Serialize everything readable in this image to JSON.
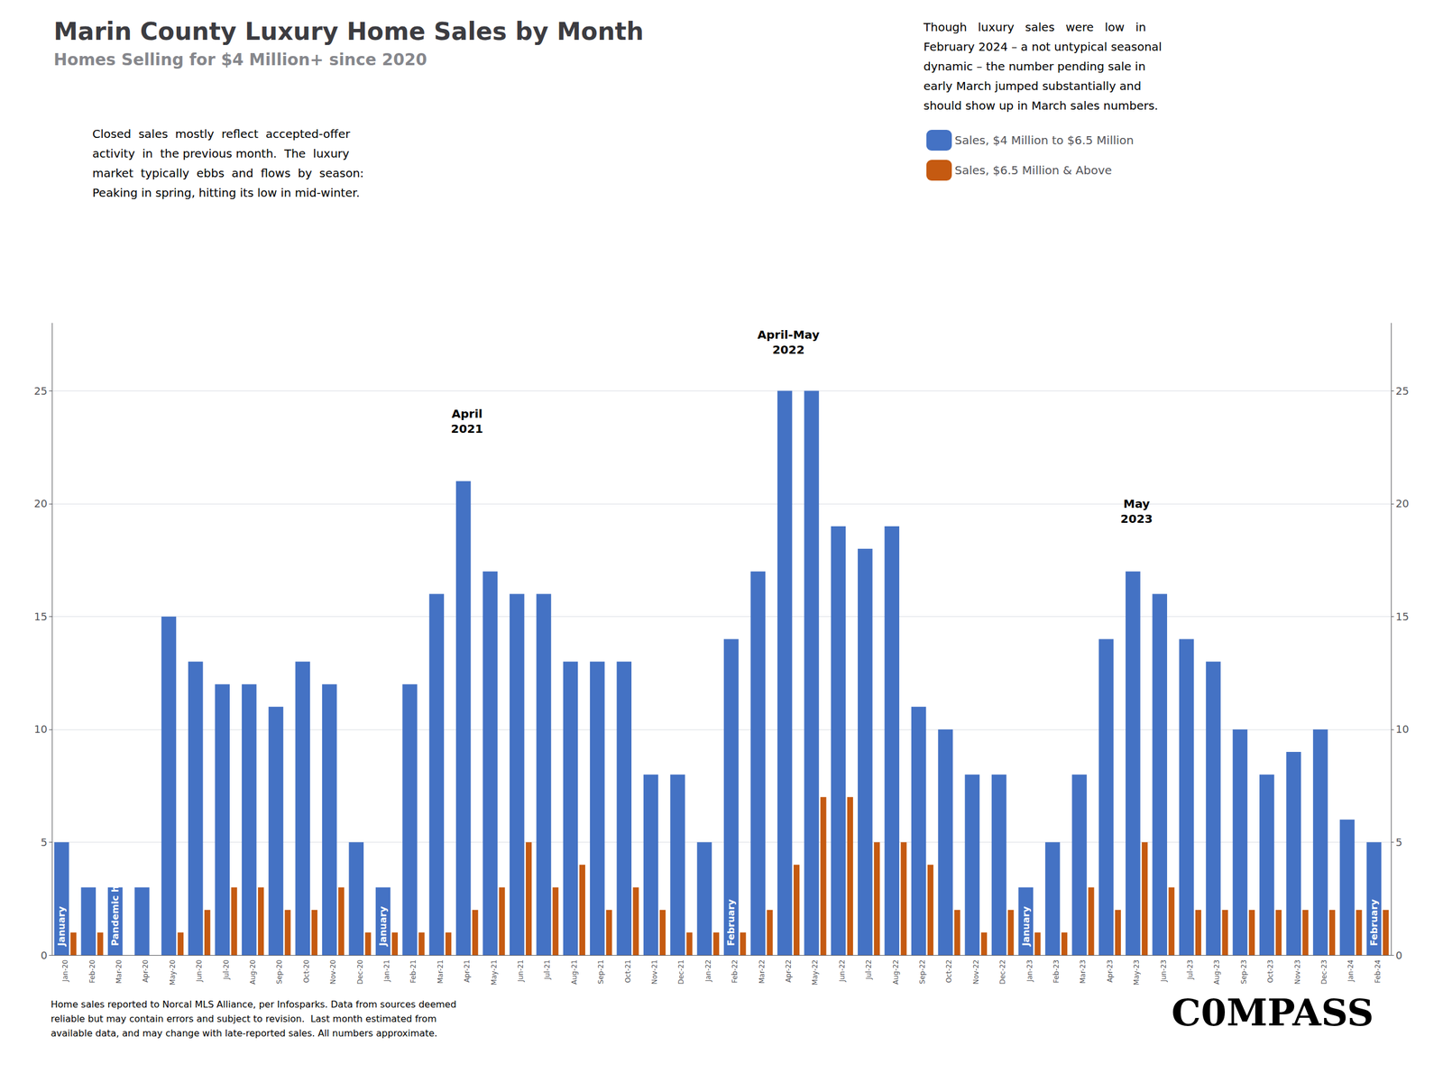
{
  "chart_data": {
    "type": "bar",
    "title": "Marin County Luxury Home Sales by Month",
    "subtitle": "Homes Selling for $4 Million+ since 2020",
    "description": [
      "Closed  sales  mostly  reflect  accepted-offer",
      "activity  in  the previous month.  The  luxury",
      "market  typically  ebbs  and  flows  by  season:",
      "Peaking in spring, hitting its low in mid-winter."
    ],
    "highlight_note": [
      "Though   luxury   sales   were   low   in",
      "February 2024 – a not untypical seasonal",
      "dynamic – the number pending sale in",
      "early March jumped substantially and",
      "should show up in March sales numbers."
    ],
    "categories": [
      "Jan-20",
      "Feb-20",
      "Mar-20",
      "Apr-20",
      "May-20",
      "Jun-20",
      "Jul-20",
      "Aug-20",
      "Sep-20",
      "Oct-20",
      "Nov-20",
      "Dec-20",
      "Jan-21",
      "Feb-21",
      "Mar-21",
      "Apr-21",
      "May-21",
      "Jun-21",
      "Jul-21",
      "Aug-21",
      "Sep-21",
      "Oct-21",
      "Nov-21",
      "Dec-21",
      "Jan-22",
      "Feb-22",
      "Mar-22",
      "Apr-22",
      "May-22",
      "Jun-22",
      "Jul-22",
      "Aug-22",
      "Sep-22",
      "Oct-22",
      "Nov-22",
      "Dec-22",
      "Jan-23",
      "Feb-23",
      "Mar-23",
      "Apr-23",
      "May-23",
      "Jun-23",
      "Jul-23",
      "Aug-23",
      "Sep-23",
      "Oct-23",
      "Nov-23",
      "Dec-23",
      "Jan-24",
      "Feb-24"
    ],
    "series": [
      {
        "name": "Sales, $4 Million to $6.5 Million",
        "color": "#4472C4",
        "values": [
          5,
          3,
          3,
          3,
          15,
          13,
          12,
          12,
          11,
          13,
          12,
          5,
          3,
          12,
          16,
          21,
          17,
          16,
          16,
          13,
          13,
          13,
          8,
          8,
          5,
          14,
          17,
          25,
          25,
          19,
          18,
          19,
          11,
          10,
          8,
          8,
          3,
          5,
          8,
          14,
          17,
          16,
          14,
          13,
          10,
          8,
          9,
          10,
          6,
          5
        ]
      },
      {
        "name": "Sales, $6.5 Million & Above",
        "color": "#C55A11",
        "values": [
          1,
          1,
          0,
          0,
          1,
          2,
          3,
          3,
          2,
          2,
          3,
          1,
          1,
          1,
          1,
          2,
          3,
          5,
          3,
          4,
          2,
          3,
          2,
          1,
          1,
          1,
          2,
          4,
          7,
          7,
          5,
          5,
          4,
          2,
          1,
          2,
          1,
          1,
          3,
          2,
          5,
          3,
          2,
          2,
          2,
          2,
          2,
          2,
          2,
          2
        ]
      }
    ],
    "ylim": [
      0,
      28
    ],
    "yticks": [
      0,
      5,
      10,
      15,
      20,
      25
    ],
    "y2lim": [
      0,
      28
    ],
    "y2ticks": [
      0,
      5,
      10,
      15,
      20,
      25
    ],
    "grid": true,
    "legend": "top",
    "bar_annotations": [
      {
        "text": "January",
        "category": "Jan-20",
        "y": 0.3,
        "color": "#FFFFFF"
      },
      {
        "text": "Pandemic hits",
        "category": "Mar-20",
        "y": 0.3,
        "color": "#FFFFFF"
      },
      {
        "text": "January",
        "category": "Jan-21",
        "y": 0.3,
        "color": "#FFFFFF"
      },
      {
        "text": "February",
        "category": "Feb-22",
        "y": 0.3,
        "color": "#FFFFFF"
      },
      {
        "text": "January",
        "category": "Jan-23",
        "y": 0.3,
        "color": "#FFFFFF"
      },
      {
        "text": "February",
        "category": "Feb-24",
        "y": 0.3,
        "color": "#FFFFFF"
      }
    ],
    "annotations": [
      {
        "text": "April\n2021",
        "category": "Apr-21",
        "y": 23
      },
      {
        "text": "April-May\n2022",
        "category": "Apr-22",
        "y": 26.5
      },
      {
        "text": "May\n2023",
        "category": "May-23",
        "y": 19
      }
    ],
    "footnote": "Home sales reported to Norcal MLS Alliance, per Infosparks. Data from sources deemed\nreliable but may contain errors and subject to revision.  Last month estimated from\navailable data, and may change with late-reported sales. All numbers approximate.",
    "logo": "C0MPASS"
  }
}
